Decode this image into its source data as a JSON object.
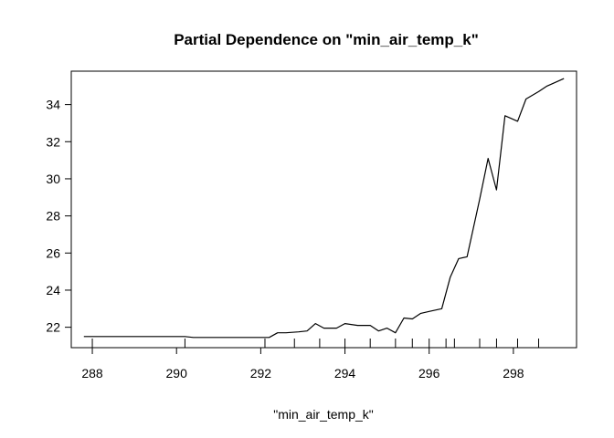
{
  "chart_data": {
    "type": "line",
    "title": "Partial Dependence on \"min_air_temp_k\"",
    "xlabel": "\"min_air_temp_k\"",
    "ylabel": "",
    "xlim": [
      287.5,
      299.5
    ],
    "ylim": [
      20.9,
      35.8
    ],
    "x_ticks": [
      288,
      290,
      292,
      294,
      296,
      298
    ],
    "y_ticks": [
      22,
      24,
      26,
      28,
      30,
      32,
      34
    ],
    "rug_x": [
      288.0,
      290.2,
      292.1,
      292.8,
      293.4,
      294.0,
      294.6,
      295.2,
      295.6,
      296.0,
      296.4,
      296.6,
      297.2,
      297.6,
      298.1,
      298.6
    ],
    "grid": false,
    "legend": "none",
    "line_color": "#000000",
    "series": [
      {
        "x": [
          287.8,
          288.6,
          289.2,
          290.2,
          290.4,
          291.2,
          291.8,
          292.2,
          292.4,
          292.6,
          292.9,
          293.1,
          293.3,
          293.5,
          293.8,
          294.0,
          294.3,
          294.6,
          294.8,
          295.0,
          295.2,
          295.4,
          295.6,
          295.8,
          296.0,
          296.3,
          296.5,
          296.7,
          296.9,
          297.2,
          297.4,
          297.6,
          297.8,
          298.1,
          298.3,
          298.6,
          298.8,
          299.0,
          299.2
        ],
        "y": [
          21.5,
          21.5,
          21.5,
          21.5,
          21.45,
          21.45,
          21.45,
          21.45,
          21.7,
          21.7,
          21.75,
          21.8,
          22.2,
          21.95,
          21.95,
          22.2,
          22.1,
          22.1,
          21.8,
          21.95,
          21.7,
          22.5,
          22.45,
          22.75,
          22.85,
          23.0,
          24.7,
          25.7,
          25.8,
          28.9,
          31.1,
          29.4,
          33.4,
          33.1,
          34.3,
          34.7,
          35.0,
          35.2,
          35.4
        ]
      }
    ]
  }
}
